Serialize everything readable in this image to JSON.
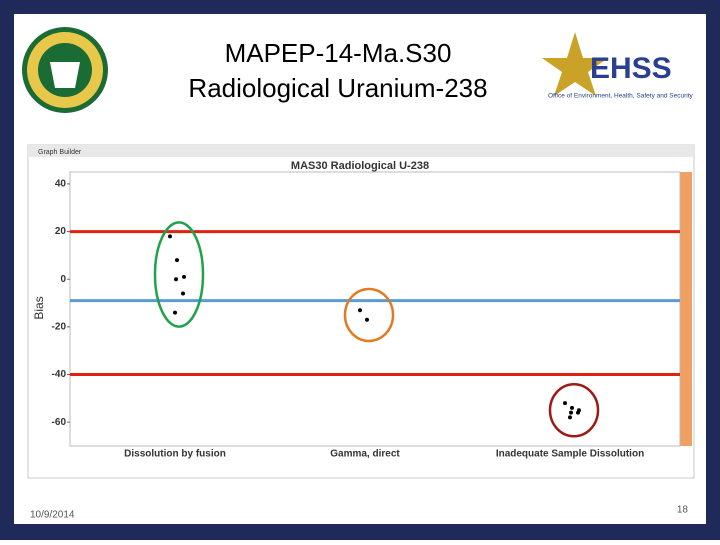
{
  "slide": {
    "title_line1": "MAPEP-14-Ma.S30",
    "title_line2": "Radiological Uranium-238",
    "date": "10/9/2014",
    "page": "18",
    "logo_text": "EHSS",
    "logo_subtext": "Office of Environment, Health, Safety and Security",
    "window_title": "Graph Builder"
  },
  "chart_data": {
    "type": "scatter",
    "title": "MAS30 Radiological U-238",
    "y_label": "Bias",
    "groups": [
      {
        "category": "Dissolution by fusion",
        "values": [
          18,
          8,
          1,
          0,
          -6,
          -14
        ]
      },
      {
        "category": "Gamma, direct",
        "values": [
          -13,
          -17
        ]
      },
      {
        "category": "Inadequate Sample Dissolution",
        "values": [
          -52,
          -54,
          -55,
          -56,
          -56,
          -58
        ]
      }
    ],
    "point_color": "#000000",
    "reference_lines": [
      {
        "value": 20,
        "color": "#e02010"
      },
      {
        "value": -40,
        "color": "#e02010"
      },
      {
        "value": -9,
        "color": "#5b9bd5"
      }
    ],
    "ylim": [
      -70,
      45
    ],
    "yticks": [
      40,
      20,
      0,
      -20,
      -40,
      -60
    ]
  }
}
